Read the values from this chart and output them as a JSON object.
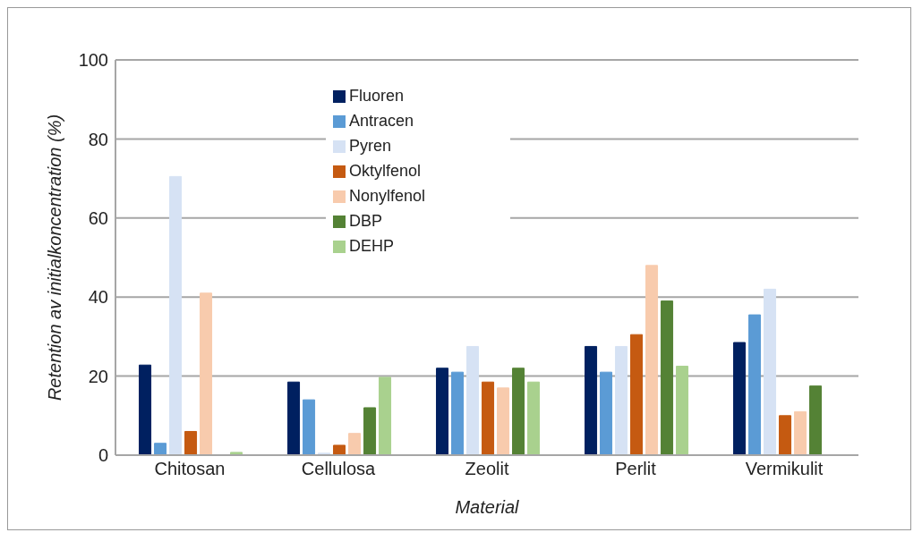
{
  "chart_data": {
    "type": "bar",
    "xlabel": "Material",
    "ylabel": "Retention av initialkoncentration (%)",
    "categories": [
      "Chitosan",
      "Cellulosa",
      "Zeolit",
      "Perlit",
      "Vermikulit"
    ],
    "series": [
      {
        "name": "Fluoren",
        "color": "#002060",
        "values": [
          22.8,
          18.5,
          22,
          27.5,
          28.5
        ]
      },
      {
        "name": "Antracen",
        "color": "#5b9bd5",
        "values": [
          3,
          14,
          21,
          21,
          35.5
        ]
      },
      {
        "name": "Pyren",
        "color": "#d6e2f4",
        "values": [
          70.5,
          0.5,
          27.5,
          27.5,
          42
        ]
      },
      {
        "name": "Oktylfenol",
        "color": "#c55a11",
        "values": [
          6,
          2.5,
          18.5,
          30.5,
          10
        ]
      },
      {
        "name": "Nonylfenol",
        "color": "#f8cbad",
        "values": [
          41,
          5.5,
          17,
          48,
          11
        ]
      },
      {
        "name": "DBP",
        "color": "#548235",
        "values": [
          null,
          12,
          22,
          39,
          17.5
        ]
      },
      {
        "name": "DEHP",
        "color": "#a9d18e",
        "values": [
          0.7,
          19.7,
          18.5,
          22.5,
          null
        ]
      }
    ],
    "ylim": [
      0,
      100
    ],
    "yticks": [
      0,
      20,
      40,
      60,
      80,
      100
    ],
    "grid": "y",
    "legend": "top"
  }
}
